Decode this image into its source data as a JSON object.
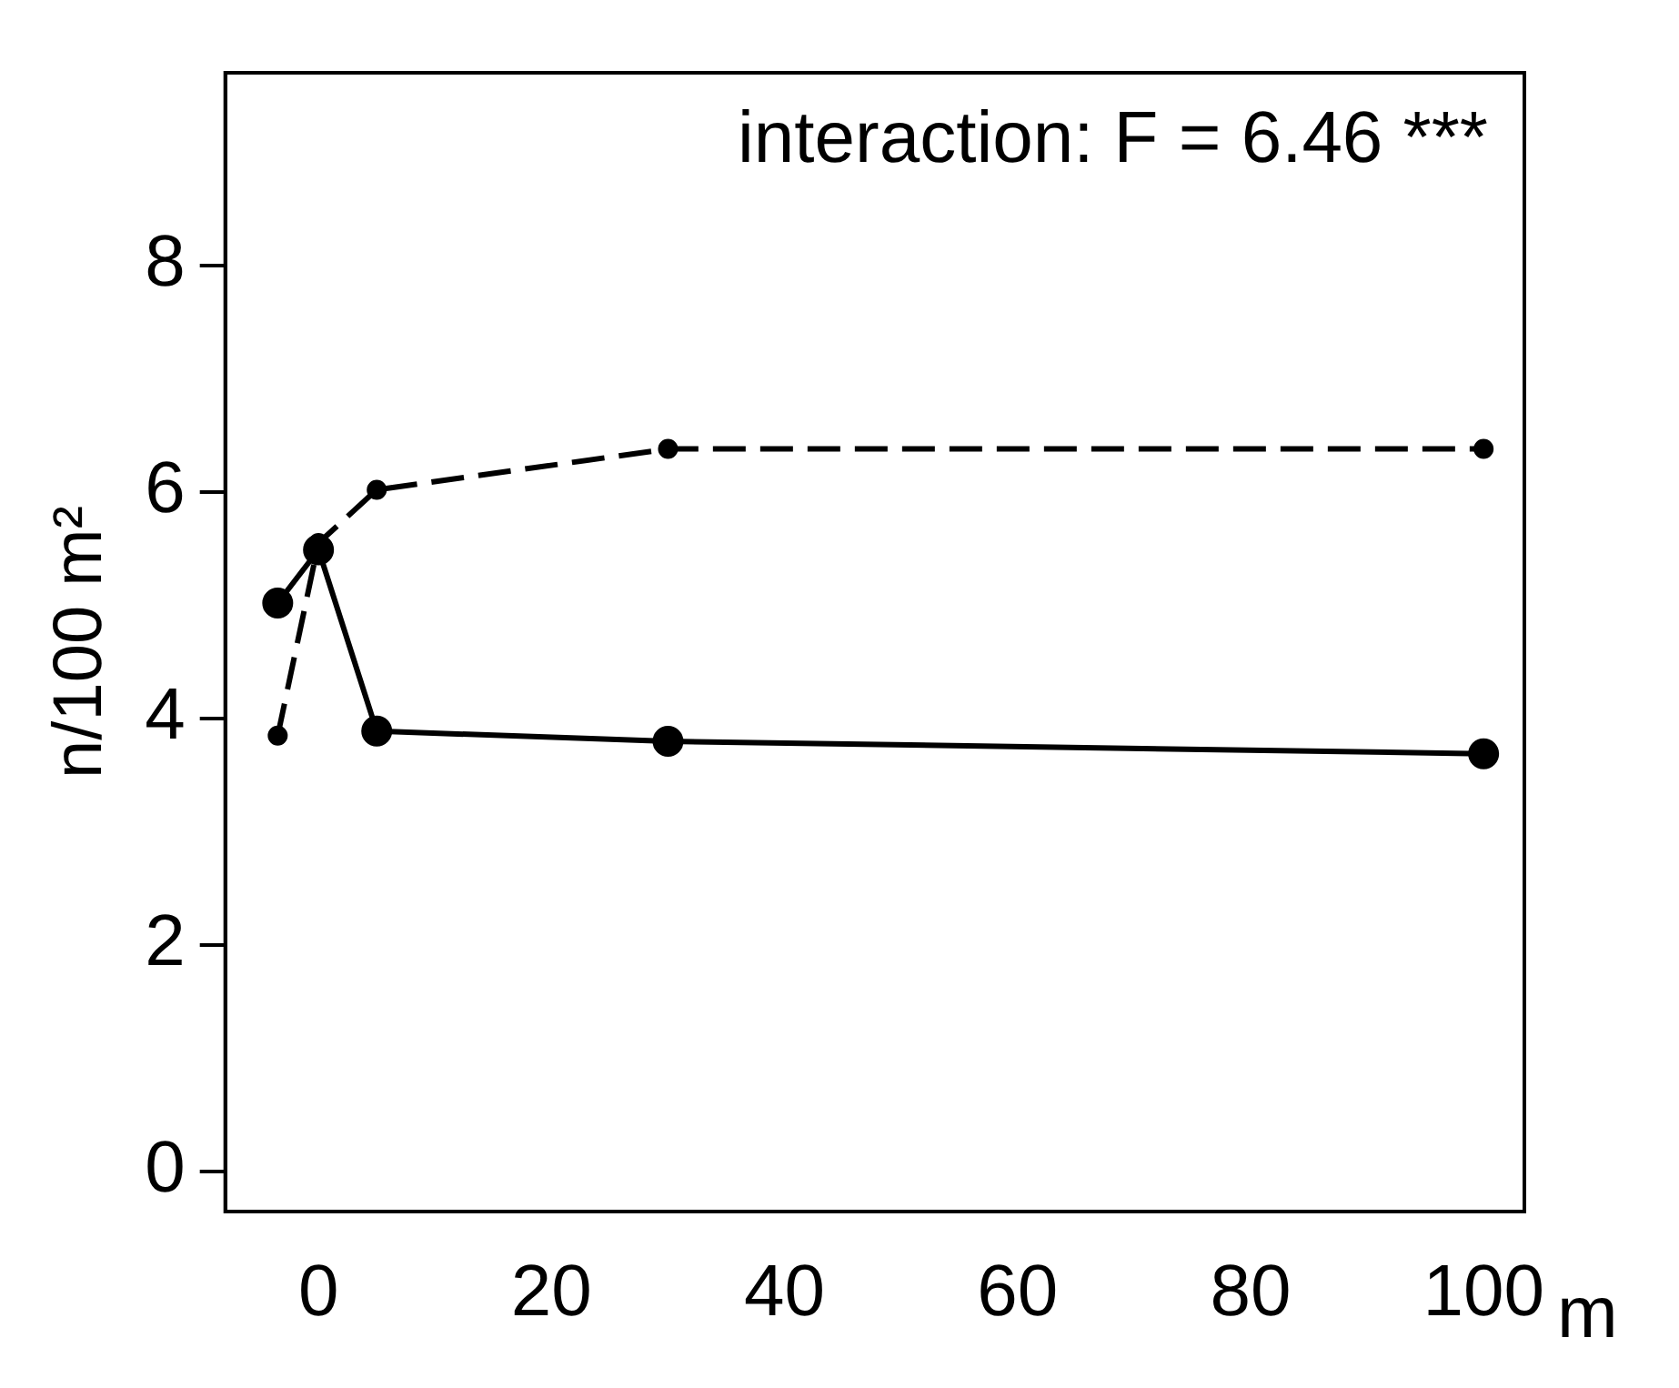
{
  "chart_data": {
    "type": "line",
    "xlabel": "m",
    "ylabel": "n/100 m²",
    "annotations": [
      "interaction: F = 6.46 ***"
    ],
    "x": [
      -3.5,
      0,
      5,
      30,
      100
    ],
    "series": [
      {
        "color": "#000000",
        "line_style": "dashed",
        "values": [
          3.85,
          5.55,
          6.02,
          6.38,
          6.38
        ]
      },
      {
        "color": "#000000",
        "line_style": "solid",
        "values": [
          5.02,
          5.49,
          3.89,
          3.8,
          3.69
        ]
      }
    ],
    "xlim": [
      -8,
      103.5
    ],
    "ylim": [
      -0.35,
      9.7
    ],
    "xticks": [
      0,
      20,
      40,
      60,
      80,
      100
    ],
    "yticks": [
      0,
      2,
      4,
      6,
      8
    ],
    "marker": "circle",
    "grid": false,
    "legend": false
  }
}
